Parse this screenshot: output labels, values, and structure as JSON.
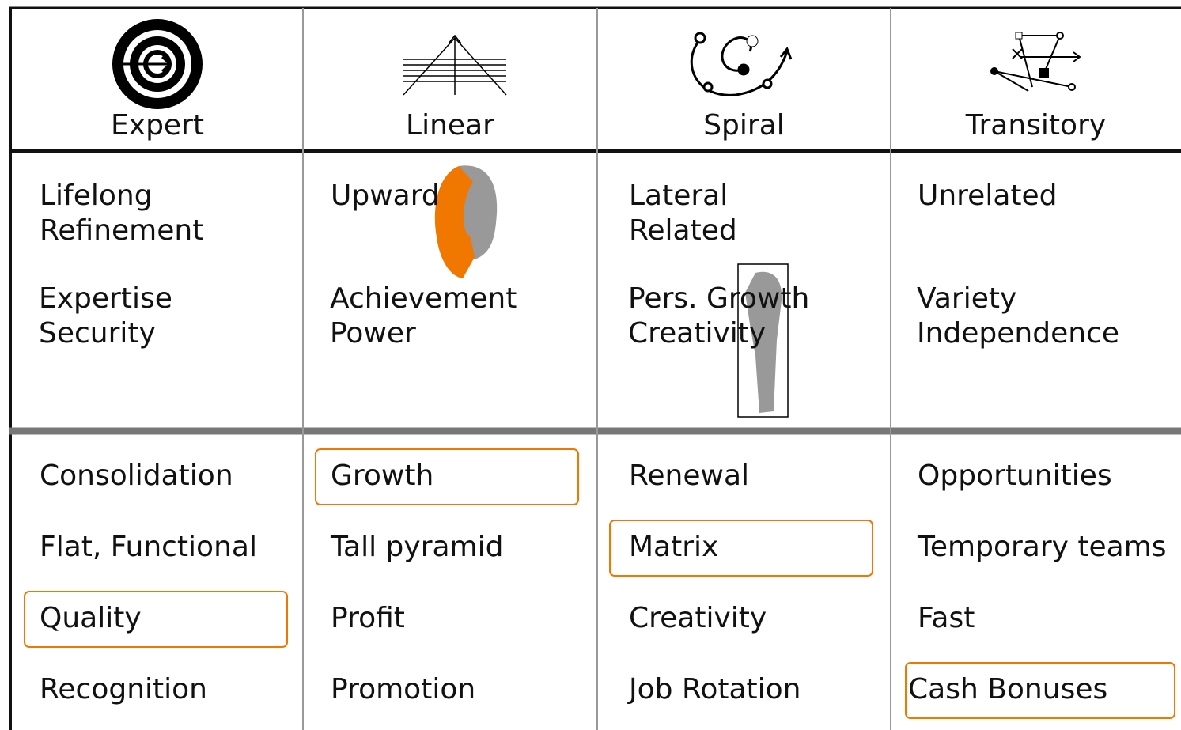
{
  "columns": [
    {
      "title": "Expert",
      "movement": [
        "Lifelong",
        "Refinement"
      ],
      "motives": [
        "Expertise",
        "Security"
      ],
      "items": [
        "Consolidation",
        "Flat, Functional",
        "Quality",
        "Recognition"
      ],
      "highlight": 2
    },
    {
      "title": "Linear",
      "movement": [
        "Upward"
      ],
      "motives": [
        "Achievement",
        "Power"
      ],
      "items": [
        "Growth",
        "Tall pyramid",
        "Profit",
        "Promotion"
      ],
      "highlight": 0
    },
    {
      "title": "Spiral",
      "movement": [
        "Lateral",
        "Related"
      ],
      "motives": [
        "Pers. Growth",
        "Creativity"
      ],
      "items": [
        "Renewal",
        "Matrix",
        "Creativity",
        "Job Rotation"
      ],
      "highlight": 1
    },
    {
      "title": "Transitory",
      "movement": [
        "Unrelated"
      ],
      "motives": [
        "Variety",
        "Independence"
      ],
      "items": [
        "Opportunities",
        "Temporary teams",
        "Fast",
        "Cash Bonuses"
      ],
      "highlight": 3
    }
  ]
}
